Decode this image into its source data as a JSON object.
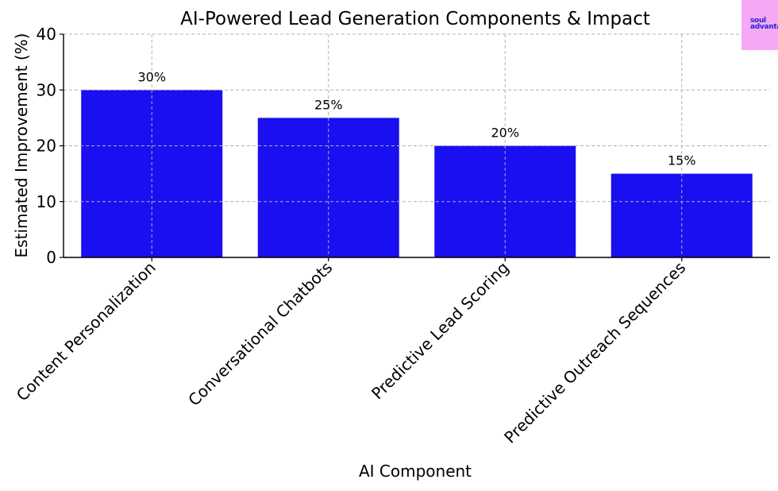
{
  "chart_data": {
    "type": "bar",
    "title": "AI-Powered Lead Generation Components & Impact",
    "xlabel": "AI Component",
    "ylabel": "Estimated Improvement (%)",
    "categories": [
      "Content Personalization",
      "Conversational Chatbots",
      "Predictive Lead Scoring",
      "Predictive Outreach Sequences"
    ],
    "values": [
      30,
      25,
      20,
      15
    ],
    "data_labels": [
      "30%",
      "25%",
      "20%",
      "15%"
    ],
    "ylim": [
      0,
      40
    ],
    "yticks": [
      0,
      10,
      20,
      30,
      40
    ],
    "bar_color": "#1a0ff0",
    "grid": true,
    "legend": "none"
  },
  "logo": {
    "text": "soul\nadvantage",
    "background_color": "#f5a9f4",
    "text_color": "#2a1fd6"
  }
}
